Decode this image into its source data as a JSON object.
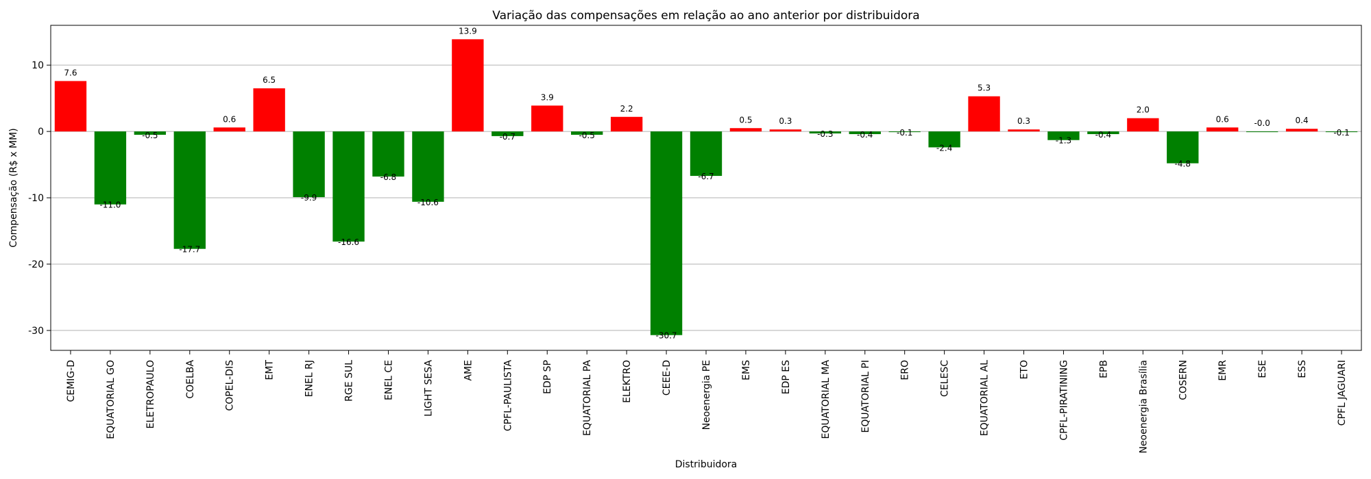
{
  "chart_data": {
    "type": "bar",
    "title": "Variação das compensações em relação ao ano anterior por distribuidora",
    "xlabel": "Distribuidora",
    "ylabel": "Compensação (R$ x MM)",
    "ylim": [
      -33,
      16
    ],
    "yticks": [
      10,
      0,
      -10,
      -20,
      -30
    ],
    "grid": "y",
    "colors": {
      "positive": "#ff0000",
      "negative": "#008000",
      "grid": "#b0b0b0",
      "zero_line": "#b0b0b0"
    },
    "categories": [
      "CEMIG-D",
      "EQUATORIAL GO",
      "ELETROPAULO",
      "COELBA",
      "COPEL-DIS",
      "EMT",
      "ENEL RJ",
      "RGE SUL",
      "ENEL CE",
      "LIGHT SESA",
      "AME",
      "CPFL-PAULISTA",
      "EDP SP",
      "EQUATORIAL PA",
      "ELEKTRO",
      "CEEE-D",
      "Neoenergia PE",
      "EMS",
      "EDP ES",
      "EQUATORIAL MA",
      "EQUATORIAL PI",
      "ERO",
      "CELESC",
      "EQUATORIAL AL",
      "ETO",
      "CPFL-PIRATINING",
      "EPB",
      "Neoenergia Brasília",
      "COSERN",
      "EMR",
      "ESE",
      "ESS",
      "CPFL JAGUARI"
    ],
    "values": [
      7.6,
      -11.0,
      -0.5,
      -17.7,
      0.6,
      6.5,
      -9.9,
      -16.6,
      -6.8,
      -10.6,
      13.9,
      -0.7,
      3.9,
      -0.5,
      2.2,
      -30.7,
      -6.7,
      0.5,
      0.3,
      -0.3,
      -0.4,
      -0.1,
      -2.4,
      5.3,
      0.3,
      -1.3,
      -0.4,
      2.0,
      -4.8,
      0.6,
      -0.0,
      0.4,
      -0.1
    ],
    "labels": [
      "7.6",
      "-11.0",
      "-0.5",
      "-17.7",
      "0.6",
      "6.5",
      "-9.9",
      "-16.6",
      "-6.8",
      "-10.6",
      "13.9",
      "-0.7",
      "3.9",
      "-0.5",
      "2.2",
      "-30.7",
      "-6.7",
      "0.5",
      "0.3",
      "-0.3",
      "-0.4",
      "-0.1",
      "-2.4",
      "5.3",
      "0.3",
      "-1.3",
      "-0.4",
      "2.0",
      "-4.8",
      "0.6",
      "-0.0",
      "0.4",
      "-0.1"
    ]
  }
}
